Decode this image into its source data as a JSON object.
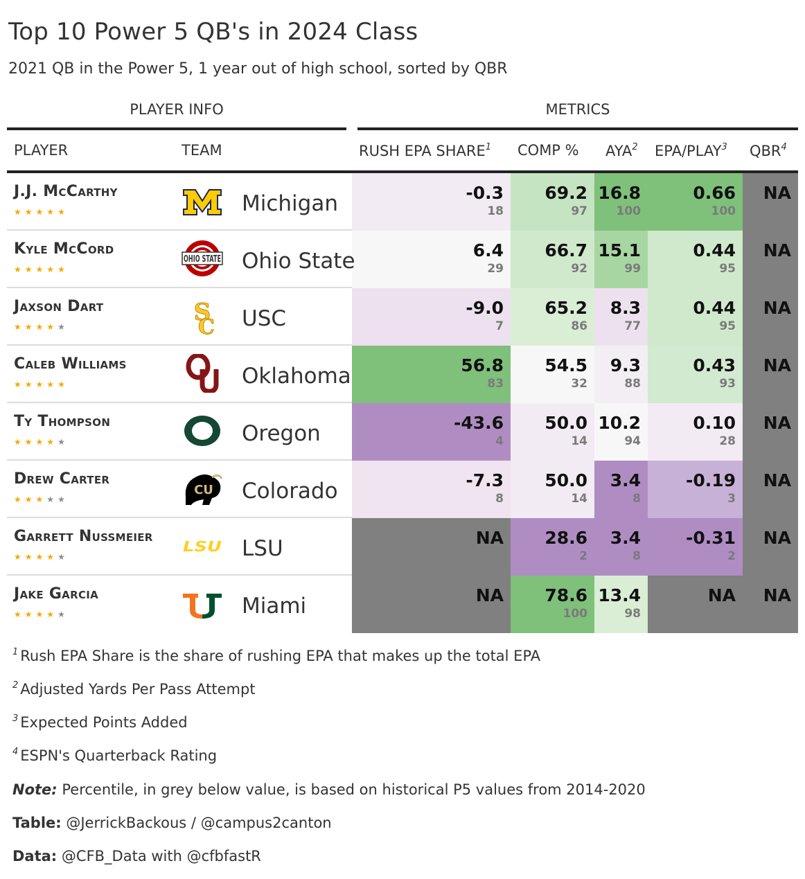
{
  "title": "Top 10 Power 5 QB's in 2024 Class",
  "subtitle": "2021 QB in the Power 5, 1 year out of high school, sorted by QBR",
  "spanners": {
    "player_info": "PLAYER INFO",
    "metrics": "METRICS"
  },
  "columns": {
    "player": "PLAYER",
    "team": "TEAM",
    "rush": "RUSH EPA SHARE",
    "rush_fn": "1",
    "comp": "COMP %",
    "aya": "AYA",
    "aya_fn": "2",
    "epa": "EPA/PLAY",
    "epa_fn": "3",
    "qbr": "QBR",
    "qbr_fn": "4"
  },
  "colors": {
    "na": "#808080",
    "green_dark": "#7fc07b",
    "purple_dark": "#af8dc3",
    "star_on": "#f5a800",
    "star_off": "#8c8c8c"
  },
  "chart_data": {
    "type": "table",
    "rows": [
      {
        "player": "J.J. McCarthy",
        "stars": 5,
        "logo": "michigan-logo",
        "team": "Michigan",
        "rush": "-0.3",
        "rush_pct": "18",
        "rush_color": "#f2ebf3",
        "comp": "69.2",
        "comp_pct": "97",
        "comp_color": "#c5e4c1",
        "aya": "16.8",
        "aya_pct": "100",
        "aya_color": "#7fc07b",
        "epa": "0.66",
        "epa_pct": "100",
        "epa_color": "#7fc07b",
        "qbr": "NA",
        "qbr_pct": "",
        "qbr_color": "#808080"
      },
      {
        "player": "Kyle McCord",
        "stars": 5,
        "logo": "ohio-state-logo",
        "team": "Ohio State",
        "rush": "6.4",
        "rush_pct": "29",
        "rush_color": "#f7f7f7",
        "comp": "66.7",
        "comp_pct": "92",
        "comp_color": "#d0e9cc",
        "aya": "15.1",
        "aya_pct": "99",
        "aya_color": "#a8d6a3",
        "epa": "0.44",
        "epa_pct": "95",
        "epa_color": "#d0e9cc",
        "qbr": "NA",
        "qbr_pct": "",
        "qbr_color": "#808080"
      },
      {
        "player": "Jaxson Dart",
        "stars": 4,
        "logo": "usc-logo",
        "team": "USC",
        "rush": "-9.0",
        "rush_pct": "7",
        "rush_color": "#ede1ef",
        "comp": "65.2",
        "comp_pct": "86",
        "comp_color": "#d9eed5",
        "aya": "8.3",
        "aya_pct": "77",
        "aya_color": "#ede1ef",
        "epa": "0.44",
        "epa_pct": "95",
        "epa_color": "#d0e9cc",
        "qbr": "NA",
        "qbr_pct": "",
        "qbr_color": "#808080"
      },
      {
        "player": "Caleb Williams",
        "stars": 5,
        "logo": "oklahoma-logo",
        "team": "Oklahoma",
        "rush": "56.8",
        "rush_pct": "83",
        "rush_color": "#7fc07b",
        "comp": "54.5",
        "comp_pct": "32",
        "comp_color": "#f7f7f7",
        "aya": "9.3",
        "aya_pct": "88",
        "aya_color": "#f3eef4",
        "epa": "0.43",
        "epa_pct": "93",
        "epa_color": "#d2ead0",
        "qbr": "NA",
        "qbr_pct": "",
        "qbr_color": "#808080"
      },
      {
        "player": "Ty Thompson",
        "stars": 4,
        "logo": "oregon-logo",
        "team": "Oregon",
        "rush": "-43.6",
        "rush_pct": "4",
        "rush_color": "#af8dc3",
        "comp": "50.0",
        "comp_pct": "14",
        "comp_color": "#f2ebf3",
        "aya": "10.2",
        "aya_pct": "94",
        "aya_color": "#f7f7f7",
        "epa": "0.10",
        "epa_pct": "28",
        "epa_color": "#f2ebf3",
        "qbr": "NA",
        "qbr_pct": "",
        "qbr_color": "#808080"
      },
      {
        "player": "Drew Carter",
        "stars": 3,
        "logo": "colorado-logo",
        "team": "Colorado",
        "rush": "-7.3",
        "rush_pct": "8",
        "rush_color": "#efe4f0",
        "comp": "50.0",
        "comp_pct": "14",
        "comp_color": "#f2ebf3",
        "aya": "3.4",
        "aya_pct": "8",
        "aya_color": "#af8dc3",
        "epa": "-0.19",
        "epa_pct": "3",
        "epa_color": "#c8b1d6",
        "qbr": "NA",
        "qbr_pct": "",
        "qbr_color": "#808080"
      },
      {
        "player": "Garrett Nussmeier",
        "stars": 4,
        "logo": "lsu-logo",
        "team": "LSU",
        "rush": "NA",
        "rush_pct": "",
        "rush_color": "#808080",
        "comp": "28.6",
        "comp_pct": "2",
        "comp_color": "#af8dc3",
        "aya": "3.4",
        "aya_pct": "8",
        "aya_color": "#af8dc3",
        "epa": "-0.31",
        "epa_pct": "2",
        "epa_color": "#af8dc3",
        "qbr": "NA",
        "qbr_pct": "",
        "qbr_color": "#808080"
      },
      {
        "player": "Jake Garcia",
        "stars": 4,
        "logo": "miami-logo",
        "team": "Miami",
        "rush": "NA",
        "rush_pct": "",
        "rush_color": "#808080",
        "comp": "78.6",
        "comp_pct": "100",
        "comp_color": "#7fc07b",
        "aya": "13.4",
        "aya_pct": "98",
        "aya_color": "#d9eed5",
        "epa": "NA",
        "epa_pct": "",
        "epa_color": "#808080",
        "qbr": "NA",
        "qbr_pct": "",
        "qbr_color": "#808080"
      }
    ]
  },
  "footnotes": [
    {
      "mark": "1",
      "text": "Rush EPA Share is the share of rushing EPA that makes up the total EPA"
    },
    {
      "mark": "2",
      "text": "Adjusted Yards Per Pass Attempt"
    },
    {
      "mark": "3",
      "text": "Expected Points Added"
    },
    {
      "mark": "4",
      "text": "ESPN's Quarterback Rating"
    }
  ],
  "source_notes": {
    "note_label": "Note:",
    "note_text": "Percentile, in grey below value, is based on historical P5 values from 2014-2020",
    "table_label": "Table:",
    "table_text": "@JerrickBackous / @campus2canton",
    "data_label": "Data:",
    "data_text": "@CFB_Data with @cfbfastR"
  }
}
